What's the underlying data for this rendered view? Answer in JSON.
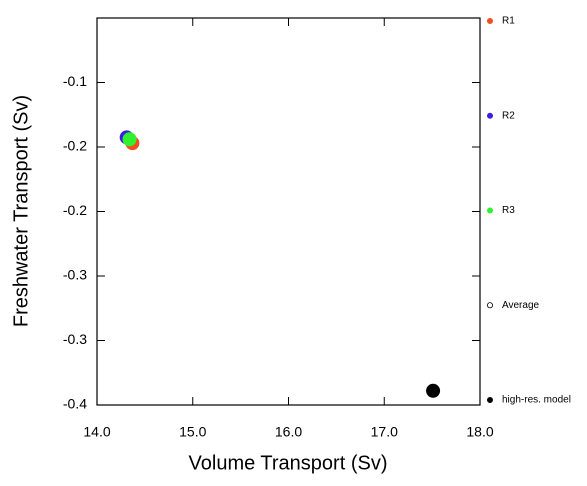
{
  "chart_data": {
    "type": "scatter",
    "xlabel": "Volume Transport (Sv)",
    "ylabel": "Freshwater Transport (Sv)",
    "xlim": [
      14.0,
      18.0
    ],
    "ylim": [
      -0.4,
      -0.1
    ],
    "xticks": [
      {
        "value": 14,
        "label": "14.0"
      },
      {
        "value": 15,
        "label": "15.0"
      },
      {
        "value": 16,
        "label": "16.0"
      },
      {
        "value": 17,
        "label": "17.0"
      },
      {
        "value": 18,
        "label": "18.0"
      }
    ],
    "yticks": [
      {
        "value": -0.4,
        "label": "-0.4"
      },
      {
        "value": -0.35,
        "label": "-0.3"
      },
      {
        "value": -0.3,
        "label": "-0.3"
      },
      {
        "value": -0.25,
        "label": "-0.2"
      },
      {
        "value": -0.2,
        "label": "-0.2"
      },
      {
        "value": -0.15,
        "label": "-0.1"
      }
    ],
    "series": [
      {
        "name": "R1",
        "color": "#f05020",
        "x": [
          14.37
        ],
        "values": [
          -0.197
        ]
      },
      {
        "name": "R2",
        "color": "#3a1fe0",
        "x": [
          14.31
        ],
        "values": [
          -0.1925
        ]
      },
      {
        "name": "R3",
        "color": "#30f030",
        "x": [
          14.34
        ],
        "values": [
          -0.194
        ]
      },
      {
        "name": "Average",
        "color": "#000000",
        "open": true,
        "x": [],
        "values": []
      },
      {
        "name": "high-res. model",
        "color": "#000000",
        "x": [
          17.51
        ],
        "values": [
          -0.389
        ]
      }
    ]
  }
}
